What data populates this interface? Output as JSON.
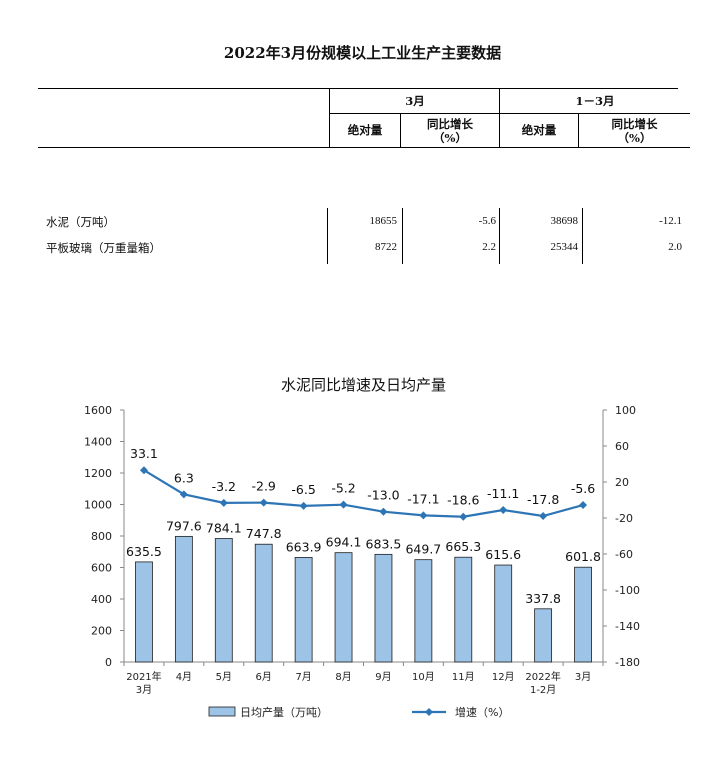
{
  "document": {
    "title": "2022年3月份规模以上工业生产主要数据"
  },
  "table": {
    "group_headers": [
      "3月",
      "1－3月"
    ],
    "sub_headers": [
      {
        "line1": "绝对量",
        "line2": ""
      },
      {
        "line1": "同比增长",
        "line2": "（%）"
      },
      {
        "line1": "绝对量",
        "line2": ""
      },
      {
        "line1": "同比增长",
        "line2": "（%）"
      }
    ],
    "rows": [
      {
        "label": "水泥（万吨）",
        "values": [
          "18655",
          "-5.6",
          "38698",
          "-12.1"
        ]
      },
      {
        "label": "平板玻璃（万重量箱）",
        "values": [
          "8722",
          "2.2",
          "25344",
          "2.0"
        ]
      }
    ]
  },
  "chart_data": {
    "type": "bar+line",
    "title": "水泥同比增速及日均产量",
    "categories": [
      [
        "2021年",
        "3月"
      ],
      [
        "4月"
      ],
      [
        "5月"
      ],
      [
        "6月"
      ],
      [
        "7月"
      ],
      [
        "8月"
      ],
      [
        "9月"
      ],
      [
        "10月"
      ],
      [
        "11月"
      ],
      [
        "12月"
      ],
      [
        "2022年",
        "1-2月"
      ],
      [
        "3月"
      ]
    ],
    "series": [
      {
        "name": "日均产量（万吨）",
        "axis": "left",
        "kind": "bar",
        "color": "#9dc3e6",
        "border": "#1f1f1f",
        "values": [
          635.5,
          797.6,
          784.1,
          747.8,
          663.9,
          694.1,
          683.5,
          649.7,
          665.3,
          615.6,
          337.8,
          601.8
        ],
        "labels": [
          "635.5",
          "797.6",
          "784.1",
          "747.8",
          "663.9",
          "694.1",
          "683.5",
          "649.7",
          "665.3",
          "615.6",
          "337.8",
          "601.8"
        ]
      },
      {
        "name": "增速（%）",
        "axis": "right",
        "kind": "line",
        "color": "#2e75b6",
        "values": [
          33.1,
          6.3,
          -3.2,
          -2.9,
          -6.5,
          -5.2,
          -13.0,
          -17.1,
          -18.6,
          -11.1,
          -17.8,
          -5.6
        ],
        "labels": [
          "33.1",
          "6.3",
          "-3.2",
          "-2.9",
          "-6.5",
          "-5.2",
          "-13.0",
          "-17.1",
          "-18.6",
          "-11.1",
          "-17.8",
          "-5.6"
        ]
      }
    ],
    "y_left": {
      "min": 0,
      "max": 1600,
      "ticks": [
        "0",
        "200",
        "400",
        "600",
        "800",
        "1000",
        "1200",
        "1400",
        "1600"
      ]
    },
    "y_right": {
      "min": -180,
      "max": 100,
      "ticks": [
        "-180",
        "-140",
        "-100",
        "-60",
        "-20",
        "20",
        "60",
        "100"
      ]
    },
    "grid": false,
    "legend_position": "bottom"
  }
}
